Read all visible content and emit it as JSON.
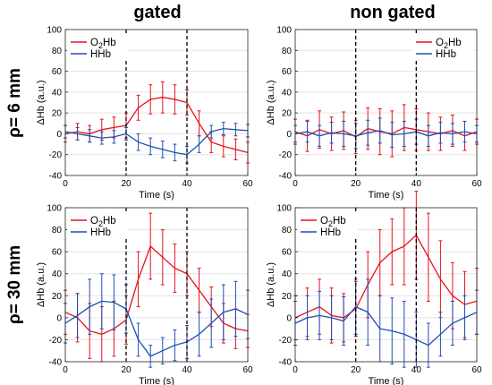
{
  "col_titles": [
    "gated",
    "non gated"
  ],
  "row_titles": [
    "ρ= 6 mm",
    "ρ= 30 mm"
  ],
  "colors": {
    "o2hb": "#e8101b",
    "hhb": "#1f4fb5"
  },
  "chart_data": [
    {
      "type": "line",
      "panel": "top-left",
      "xlabel": "Time (s)",
      "ylabel": "ΔHb (a.u.)",
      "xlim": [
        0,
        60
      ],
      "ylim": [
        -40,
        100
      ],
      "xticks": [
        0,
        20,
        40,
        60
      ],
      "yticks": [
        -40,
        -20,
        0,
        20,
        40,
        60,
        80,
        100
      ],
      "vlines": [
        20,
        40
      ],
      "legend": [
        "O2Hb",
        "HHb"
      ],
      "legend_position": "top-left",
      "series": [
        {
          "name": "O2Hb",
          "color": "#e8101b",
          "x": [
            0,
            4,
            8,
            12,
            16,
            20,
            24,
            28,
            32,
            36,
            40,
            44,
            48,
            52,
            56,
            60
          ],
          "y": [
            0,
            2,
            0,
            4,
            6,
            8,
            25,
            33,
            35,
            33,
            30,
            10,
            -8,
            -12,
            -15,
            -18
          ],
          "err": [
            8,
            8,
            8,
            10,
            10,
            12,
            12,
            14,
            15,
            14,
            12,
            12,
            10,
            10,
            10,
            10
          ]
        },
        {
          "name": "HHb",
          "color": "#1f4fb5",
          "x": [
            0,
            4,
            8,
            12,
            16,
            20,
            24,
            28,
            32,
            36,
            40,
            44,
            48,
            52,
            56,
            60
          ],
          "y": [
            2,
            0,
            -2,
            -4,
            -3,
            0,
            -8,
            -12,
            -15,
            -18,
            -20,
            -10,
            2,
            5,
            4,
            3
          ],
          "err": [
            6,
            6,
            6,
            6,
            6,
            6,
            8,
            8,
            8,
            8,
            8,
            8,
            6,
            6,
            6,
            6
          ]
        }
      ]
    },
    {
      "type": "line",
      "panel": "top-right",
      "xlabel": "Time (s)",
      "ylabel": "ΔHb (a.u.)",
      "xlim": [
        0,
        60
      ],
      "ylim": [
        -40,
        100
      ],
      "xticks": [
        0,
        20,
        40,
        60
      ],
      "yticks": [
        -40,
        -20,
        0,
        20,
        40,
        60,
        80,
        100
      ],
      "vlines": [
        20,
        40
      ],
      "legend": [
        "O2Hb",
        "HHb"
      ],
      "legend_position": "top-right",
      "series": [
        {
          "name": "O2Hb",
          "color": "#e8101b",
          "x": [
            0,
            4,
            8,
            12,
            16,
            20,
            24,
            28,
            32,
            36,
            40,
            44,
            48,
            52,
            56,
            60
          ],
          "y": [
            2,
            -2,
            4,
            0,
            3,
            -3,
            5,
            2,
            0,
            6,
            4,
            2,
            0,
            3,
            -2,
            2
          ],
          "err": [
            12,
            15,
            18,
            16,
            18,
            16,
            20,
            22,
            22,
            22,
            20,
            18,
            16,
            15,
            14,
            12
          ]
        },
        {
          "name": "HHb",
          "color": "#1f4fb5",
          "x": [
            0,
            4,
            8,
            12,
            16,
            20,
            24,
            28,
            32,
            36,
            40,
            44,
            48,
            52,
            56,
            60
          ],
          "y": [
            0,
            2,
            -2,
            1,
            0,
            -2,
            1,
            3,
            -1,
            0,
            2,
            -2,
            1,
            0,
            2,
            0
          ],
          "err": [
            8,
            10,
            10,
            10,
            12,
            12,
            12,
            12,
            12,
            12,
            12,
            10,
            10,
            10,
            10,
            8
          ]
        }
      ]
    },
    {
      "type": "line",
      "panel": "bottom-left",
      "xlabel": "Time (s)",
      "ylabel": "ΔHb (a.u.)",
      "xlim": [
        0,
        60
      ],
      "ylim": [
        -40,
        100
      ],
      "xticks": [
        0,
        20,
        40,
        60
      ],
      "yticks": [
        -40,
        -20,
        0,
        20,
        40,
        60,
        80,
        100
      ],
      "vlines": [
        20,
        40
      ],
      "legend": [
        "O2Hb",
        "HHb"
      ],
      "legend_position": "top-left",
      "series": [
        {
          "name": "O2Hb",
          "color": "#e8101b",
          "x": [
            0,
            4,
            8,
            12,
            16,
            20,
            24,
            28,
            32,
            36,
            40,
            44,
            48,
            52,
            56,
            60
          ],
          "y": [
            5,
            0,
            -12,
            -15,
            -10,
            -2,
            35,
            65,
            55,
            45,
            40,
            25,
            10,
            -5,
            -10,
            -12
          ],
          "err": [
            20,
            22,
            25,
            25,
            25,
            22,
            25,
            30,
            25,
            22,
            20,
            20,
            18,
            18,
            18,
            15
          ]
        },
        {
          "name": "HHb",
          "color": "#1f4fb5",
          "x": [
            0,
            4,
            8,
            12,
            16,
            20,
            24,
            28,
            32,
            36,
            40,
            44,
            48,
            52,
            56,
            60
          ],
          "y": [
            -5,
            2,
            10,
            15,
            14,
            8,
            -20,
            -35,
            -30,
            -25,
            -22,
            -15,
            -5,
            5,
            8,
            3
          ],
          "err": [
            18,
            20,
            25,
            25,
            25,
            22,
            15,
            10,
            12,
            14,
            15,
            20,
            22,
            25,
            25,
            22
          ]
        }
      ]
    },
    {
      "type": "line",
      "panel": "bottom-right",
      "xlabel": "Time (s)",
      "ylabel": "ΔHb (a.u.)",
      "xlim": [
        0,
        60
      ],
      "ylim": [
        -40,
        100
      ],
      "xticks": [
        0,
        20,
        40,
        60
      ],
      "yticks": [
        -40,
        -20,
        0,
        20,
        40,
        60,
        80,
        100
      ],
      "vlines": [
        20,
        40
      ],
      "legend": [
        "O2Hb",
        "HHb"
      ],
      "legend_position": "top-left",
      "series": [
        {
          "name": "O2Hb",
          "color": "#e8101b",
          "x": [
            0,
            4,
            8,
            12,
            16,
            20,
            24,
            28,
            32,
            36,
            40,
            44,
            48,
            52,
            56,
            60
          ],
          "y": [
            0,
            5,
            10,
            2,
            0,
            8,
            30,
            50,
            60,
            65,
            75,
            55,
            35,
            20,
            12,
            15
          ],
          "err": [
            20,
            22,
            25,
            25,
            22,
            25,
            30,
            30,
            30,
            35,
            40,
            40,
            35,
            30,
            30,
            30
          ]
        },
        {
          "name": "HHb",
          "color": "#1f4fb5",
          "x": [
            0,
            4,
            8,
            12,
            16,
            20,
            24,
            28,
            32,
            36,
            40,
            44,
            48,
            52,
            56,
            60
          ],
          "y": [
            -5,
            0,
            2,
            0,
            -3,
            10,
            5,
            -10,
            -12,
            -15,
            -20,
            -25,
            -15,
            -5,
            0,
            5
          ],
          "err": [
            20,
            20,
            22,
            20,
            22,
            25,
            30,
            30,
            30,
            30,
            25,
            20,
            20,
            20,
            20,
            20
          ]
        }
      ]
    }
  ]
}
